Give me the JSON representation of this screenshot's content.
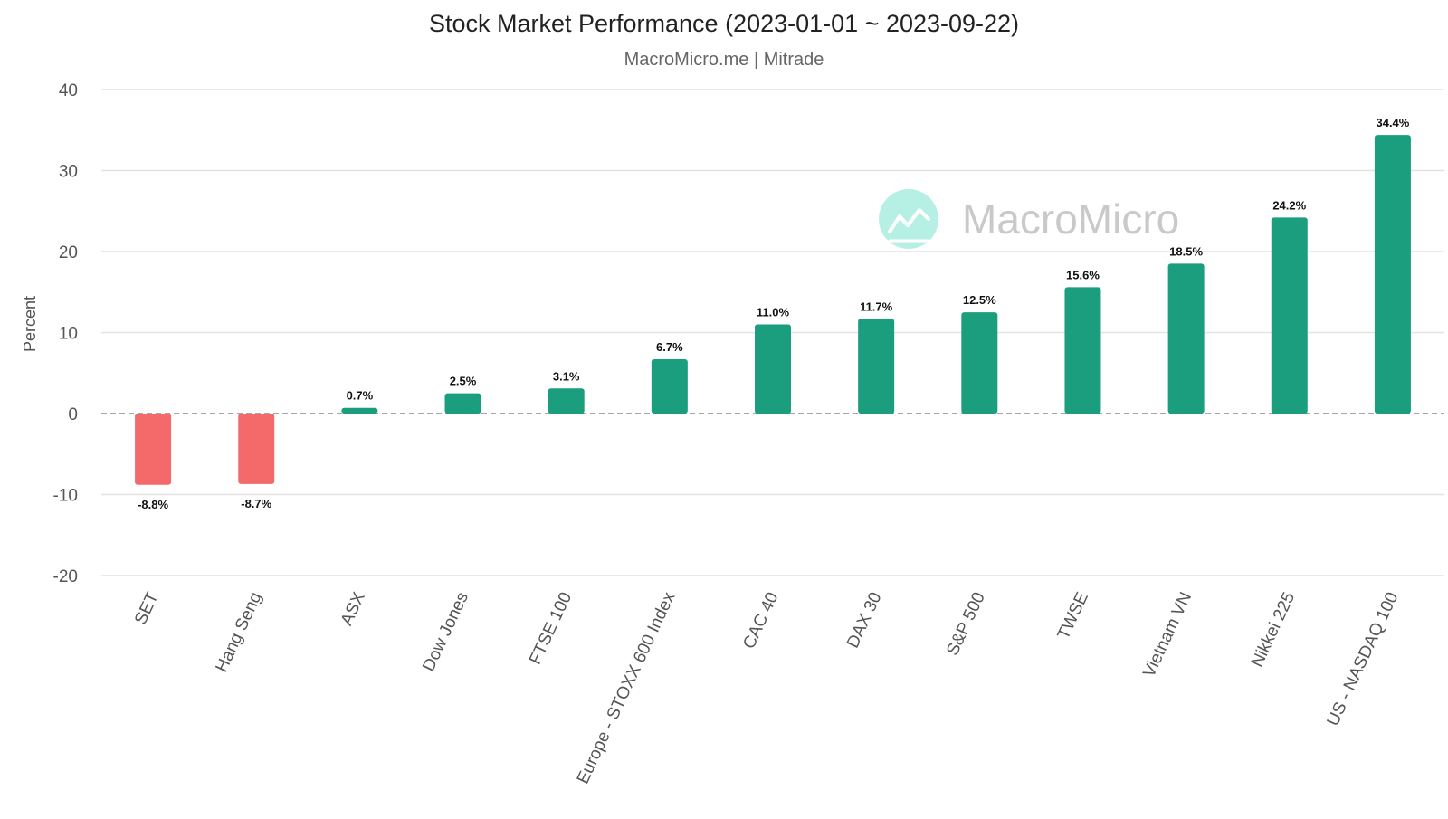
{
  "chart_data": {
    "type": "bar",
    "title": "Stock Market Performance (2023-01-01 ~ 2023-09-22)",
    "subtitle": "MacroMicro.me | Mitrade",
    "xlabel": "",
    "ylabel": "Percent",
    "ylim": [
      -20,
      40
    ],
    "yticks": [
      40,
      30,
      20,
      10,
      0,
      -10,
      -20
    ],
    "grid": true,
    "categories": [
      "SET",
      "Hang Seng",
      "ASX",
      "Dow Jones",
      "FTSE 100",
      "Europe - STOXX 600 Index",
      "CAC 40",
      "DAX 30",
      "S&P 500",
      "TWSE",
      "Vietnam VN",
      "Nikkei 225",
      "US - NASDAQ 100"
    ],
    "values": [
      -8.8,
      -8.7,
      0.7,
      2.5,
      3.1,
      6.7,
      11.0,
      11.7,
      12.5,
      15.6,
      18.5,
      24.2,
      34.4
    ],
    "data_labels": [
      "-8.8%",
      "-8.7%",
      "0.7%",
      "2.5%",
      "3.1%",
      "6.7%",
      "11.0%",
      "11.7%",
      "12.5%",
      "15.6%",
      "18.5%",
      "24.2%",
      "34.4%"
    ],
    "colors": {
      "positive": "#1b9e7e",
      "negative": "#f46a6a",
      "grid": "#e3e3e3",
      "zero_line": "#888888"
    }
  },
  "watermark": {
    "text": "MacroMicro",
    "icon": "chart-line-icon",
    "circle_color": "#b6f0e4"
  }
}
